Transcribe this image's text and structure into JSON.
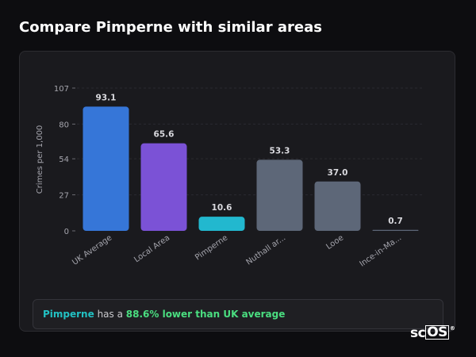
{
  "page": {
    "title": "Compare Pimperne with similar areas"
  },
  "chart_data": {
    "type": "bar",
    "ylabel": "Crimes per 1,000",
    "xlabel": "",
    "ylim": [
      0,
      107
    ],
    "yticks": [
      0,
      27,
      54,
      80,
      107
    ],
    "grid": true,
    "categories": [
      "UK Average",
      "Local Area",
      "Pimperne",
      "Nuthall ar...",
      "Looe",
      "Ince-in-Ma..."
    ],
    "values": [
      93.1,
      65.6,
      10.6,
      53.3,
      37.0,
      0.7
    ],
    "value_labels": [
      "93.1",
      "65.6",
      "10.6",
      "53.3",
      "37.0",
      "0.7"
    ],
    "colors": [
      "#3676d8",
      "#7b52d6",
      "#22b8cf",
      "#5d6778",
      "#5d6778",
      "#5d6778"
    ]
  },
  "summary": {
    "place": "Pimperne",
    "middle": " has a ",
    "difference": "88.6% lower than UK average"
  },
  "logo": {
    "prefix": "sc",
    "boxed": "OS",
    "mark": "®"
  }
}
